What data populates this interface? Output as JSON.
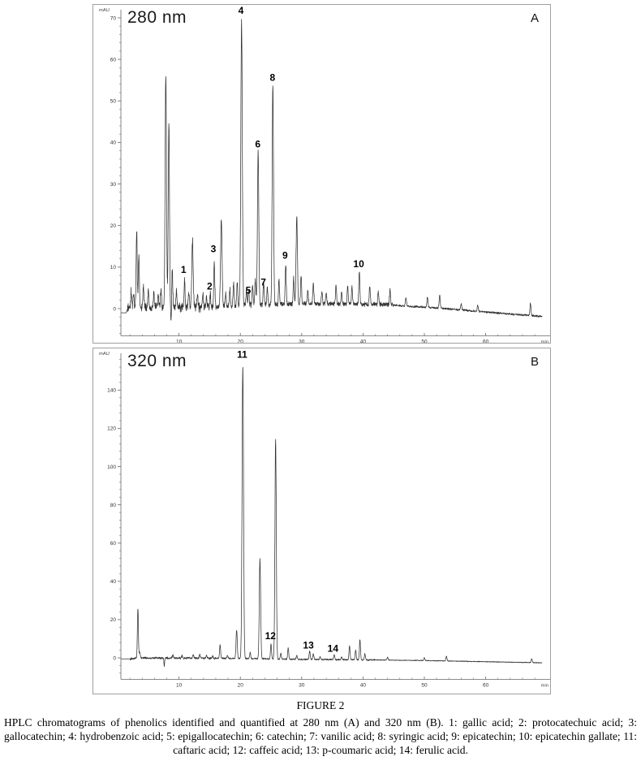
{
  "figure": {
    "caption_title": "FIGURE 2",
    "caption_text": "HPLC chromatograms of phenolics identified and quantified at 280 nm (A) and 320 nm (B). 1: gallic acid; 2: protocatechuic acid; 3: gallocatechin; 4: hydrobenzoic acid; 5: epigallocatechin; 6: catechin; 7: vanilic acid; 8: syringic acid; 9: epicatechin; 10: epicatechin gallate; 11: caftaric acid; 12: caffeic acid; 13: p-coumaric acid; 14: ferulic acid."
  },
  "colors": {
    "trace": "#333333",
    "axis": "#666666",
    "tick_text": "#333333",
    "border": "#9f9f9f",
    "label_text": "#000000"
  },
  "chart_data": [
    {
      "type": "line",
      "id": "A",
      "panel_letter": "A",
      "wavelength_label": "280 nm",
      "y_unit": "mAU",
      "x_unit": "min",
      "xlim": [
        0,
        69.5
      ],
      "ylim": [
        -7,
        73
      ],
      "x_ticks": [
        10,
        20,
        30,
        40,
        50,
        60
      ],
      "y_ticks": [
        0,
        10,
        20,
        30,
        40,
        50,
        60,
        70
      ],
      "x_minor_step": 2,
      "y_minor_step": 2,
      "peak_legend": {
        "1": "gallic acid",
        "2": "protocatechuic acid",
        "3": "gallocatechin",
        "4": "hydrobenzoic acid",
        "5": "epigallocatechin",
        "6": "catechin",
        "7": "vanilic acid",
        "8": "syringic acid",
        "9": "epicatechin",
        "10": "epicatechin gallate"
      },
      "peaks": [
        {
          "t": 2.2,
          "h": 4
        },
        {
          "t": 2.6,
          "h": 3
        },
        {
          "t": 3.1,
          "h": 18.5
        },
        {
          "t": 3.45,
          "h": 12.5
        },
        {
          "t": 4.2,
          "h": 5
        },
        {
          "t": 5.0,
          "h": 4.5
        },
        {
          "t": 5.9,
          "h": 3.5
        },
        {
          "t": 6.6,
          "h": 3
        },
        {
          "t": 7.05,
          "h": 4.5
        },
        {
          "t": 7.85,
          "h": 56,
          "w": 0.11
        },
        {
          "t": 8.35,
          "h": 45,
          "w": 0.1
        },
        {
          "t": 8.72,
          "h": -4.5,
          "w": 0.06
        },
        {
          "t": 8.9,
          "h": 9
        },
        {
          "t": 9.6,
          "h": 4
        },
        {
          "t": 10.9,
          "h": 6.5,
          "label": "1",
          "lt": 10.75,
          "lm": 8.6
        },
        {
          "t": 11.6,
          "h": 3
        },
        {
          "t": 12.2,
          "h": 16.5,
          "w": 0.11
        },
        {
          "t": 13.0,
          "h": 3.5
        },
        {
          "t": 13.9,
          "h": 3
        },
        {
          "t": 14.5,
          "h": 2.5
        },
        {
          "t": 15.1,
          "h": 3,
          "label": "2",
          "lt": 15.0,
          "lm": 4.6
        },
        {
          "t": 15.75,
          "h": 11.5,
          "label": "3",
          "lt": 15.6,
          "lm": 13.6
        },
        {
          "t": 16.9,
          "h": 21,
          "w": 0.12
        },
        {
          "t": 17.6,
          "h": 3.5
        },
        {
          "t": 18.3,
          "h": 4
        },
        {
          "t": 18.9,
          "h": 5.5
        },
        {
          "t": 19.5,
          "h": 6
        },
        {
          "t": 20.2,
          "h": 69,
          "w": 0.12,
          "label": "4",
          "lt": 20.1,
          "lm": 71
        },
        {
          "t": 21.0,
          "h": 3.5
        },
        {
          "t": 21.35,
          "h": 3.5,
          "label": "5",
          "lt": 21.3,
          "lm": 3.6
        },
        {
          "t": 22.0,
          "h": 5
        },
        {
          "t": 22.45,
          "h": 6
        },
        {
          "t": 22.9,
          "h": 37,
          "w": 0.11,
          "label": "6",
          "lt": 22.85,
          "lm": 38.8
        },
        {
          "t": 23.8,
          "h": 5,
          "label": "7",
          "lt": 23.75,
          "lm": 5.6
        },
        {
          "t": 24.4,
          "h": 4
        },
        {
          "t": 25.3,
          "h": 53,
          "w": 0.11,
          "label": "8",
          "lt": 25.25,
          "lm": 54.8
        },
        {
          "t": 26.3,
          "h": 6
        },
        {
          "t": 27.4,
          "h": 9.8,
          "label": "9",
          "lt": 27.3,
          "lm": 12
        },
        {
          "t": 28.7,
          "h": 6
        },
        {
          "t": 29.2,
          "h": 21,
          "w": 0.11
        },
        {
          "t": 29.9,
          "h": 7
        },
        {
          "t": 31.0,
          "h": 3
        },
        {
          "t": 31.9,
          "h": 5
        },
        {
          "t": 33.3,
          "h": 3
        },
        {
          "t": 34.0,
          "h": 2.5
        },
        {
          "t": 35.6,
          "h": 4.5
        },
        {
          "t": 36.5,
          "h": 3
        },
        {
          "t": 37.5,
          "h": 4.5
        },
        {
          "t": 38.2,
          "h": 4
        },
        {
          "t": 39.4,
          "h": 8,
          "label": "10",
          "lt": 39.3,
          "lm": 10
        },
        {
          "t": 41.1,
          "h": 4.5
        },
        {
          "t": 42.5,
          "h": 3
        },
        {
          "t": 44.4,
          "h": 3.5
        },
        {
          "t": 47,
          "h": 2
        },
        {
          "t": 50.5,
          "h": 2.5
        },
        {
          "t": 52.5,
          "h": 3
        },
        {
          "t": 56,
          "h": 1.5
        },
        {
          "t": 58.7,
          "h": 1.5
        },
        {
          "t": 67.3,
          "h": 3
        }
      ],
      "baseline": [
        [
          0,
          -1
        ],
        [
          1.4,
          -1
        ],
        [
          1.7,
          0.3
        ],
        [
          16,
          0.3
        ],
        [
          20,
          0.8
        ],
        [
          30,
          1.2
        ],
        [
          44,
          1
        ],
        [
          48,
          0.5
        ],
        [
          52,
          0.2
        ],
        [
          56,
          -0.3
        ],
        [
          60,
          -0.8
        ],
        [
          64,
          -1.3
        ],
        [
          69.5,
          -1.9
        ]
      ],
      "noise": [
        {
          "from": 1.6,
          "to": 16,
          "amp": 1.1
        },
        {
          "from": 16,
          "to": 30,
          "amp": 0.7
        },
        {
          "from": 30,
          "to": 45,
          "amp": 0.55
        },
        {
          "from": 45,
          "to": 69.5,
          "amp": 0.25
        }
      ]
    },
    {
      "type": "line",
      "id": "B",
      "panel_letter": "B",
      "wavelength_label": "320 nm",
      "y_unit": "mAU",
      "x_unit": "min",
      "xlim": [
        0,
        69.5
      ],
      "ylim": [
        -9,
        158
      ],
      "x_ticks": [
        10,
        20,
        30,
        40,
        50,
        60
      ],
      "y_ticks": [
        0,
        20,
        40,
        60,
        80,
        100,
        120,
        140
      ],
      "x_minor_step": 2,
      "y_minor_step": 4,
      "peak_legend": {
        "11": "caftaric acid",
        "12": "caffeic acid",
        "13": "p-coumaric acid",
        "14": "ferulic acid"
      },
      "peaks": [
        {
          "t": 3.3,
          "h": 26,
          "w": 0.08
        },
        {
          "t": 3.6,
          "h": 3
        },
        {
          "t": 7.6,
          "h": -4,
          "w": 0.06
        },
        {
          "t": 9,
          "h": 1.5
        },
        {
          "t": 10.5,
          "h": 1.2
        },
        {
          "t": 12.3,
          "h": 2
        },
        {
          "t": 13.4,
          "h": 2
        },
        {
          "t": 14.5,
          "h": 1.5
        },
        {
          "t": 15.5,
          "h": 1.2
        },
        {
          "t": 16.7,
          "h": 7
        },
        {
          "t": 17.9,
          "h": 1.5
        },
        {
          "t": 19.4,
          "h": 15,
          "w": 0.1
        },
        {
          "t": 20.4,
          "h": 153,
          "w": 0.12,
          "label": "11",
          "lt": 20.3,
          "lm": 157
        },
        {
          "t": 21.6,
          "h": 3
        },
        {
          "t": 23.2,
          "h": 52.5,
          "w": 0.11
        },
        {
          "t": 25.0,
          "h": 8,
          "label": "12",
          "lt": 24.9,
          "lm": 9.8
        },
        {
          "t": 25.75,
          "h": 115,
          "w": 0.11
        },
        {
          "t": 26.6,
          "h": 3
        },
        {
          "t": 27.8,
          "h": 6
        },
        {
          "t": 29.2,
          "h": 2
        },
        {
          "t": 31.3,
          "h": 4.5,
          "label": "13",
          "lt": 31.1,
          "lm": 4.8
        },
        {
          "t": 31.9,
          "h": 3
        },
        {
          "t": 33,
          "h": 1.5
        },
        {
          "t": 35.3,
          "h": 2.5,
          "label": "14",
          "lt": 35.1,
          "lm": 3.2
        },
        {
          "t": 36.5,
          "h": 1.5
        },
        {
          "t": 37.8,
          "h": 7
        },
        {
          "t": 38.8,
          "h": 5
        },
        {
          "t": 39.5,
          "h": 10.5
        },
        {
          "t": 40.3,
          "h": 3
        },
        {
          "t": 44,
          "h": 1.5
        },
        {
          "t": 50,
          "h": 1.5
        },
        {
          "t": 53.6,
          "h": 2.5
        },
        {
          "t": 67.5,
          "h": 2
        }
      ],
      "baseline": [
        [
          0,
          -0.5
        ],
        [
          2.6,
          -0.5
        ],
        [
          3,
          0
        ],
        [
          20,
          -0.3
        ],
        [
          30,
          -0.8
        ],
        [
          40,
          -1
        ],
        [
          50,
          -1.4
        ],
        [
          60,
          -2
        ],
        [
          69.5,
          -2.6
        ]
      ],
      "noise": [
        {
          "from": 2,
          "to": 16,
          "amp": 0.55
        },
        {
          "from": 16,
          "to": 42,
          "amp": 0.4
        },
        {
          "from": 42,
          "to": 69.5,
          "amp": 0.2
        }
      ]
    }
  ]
}
